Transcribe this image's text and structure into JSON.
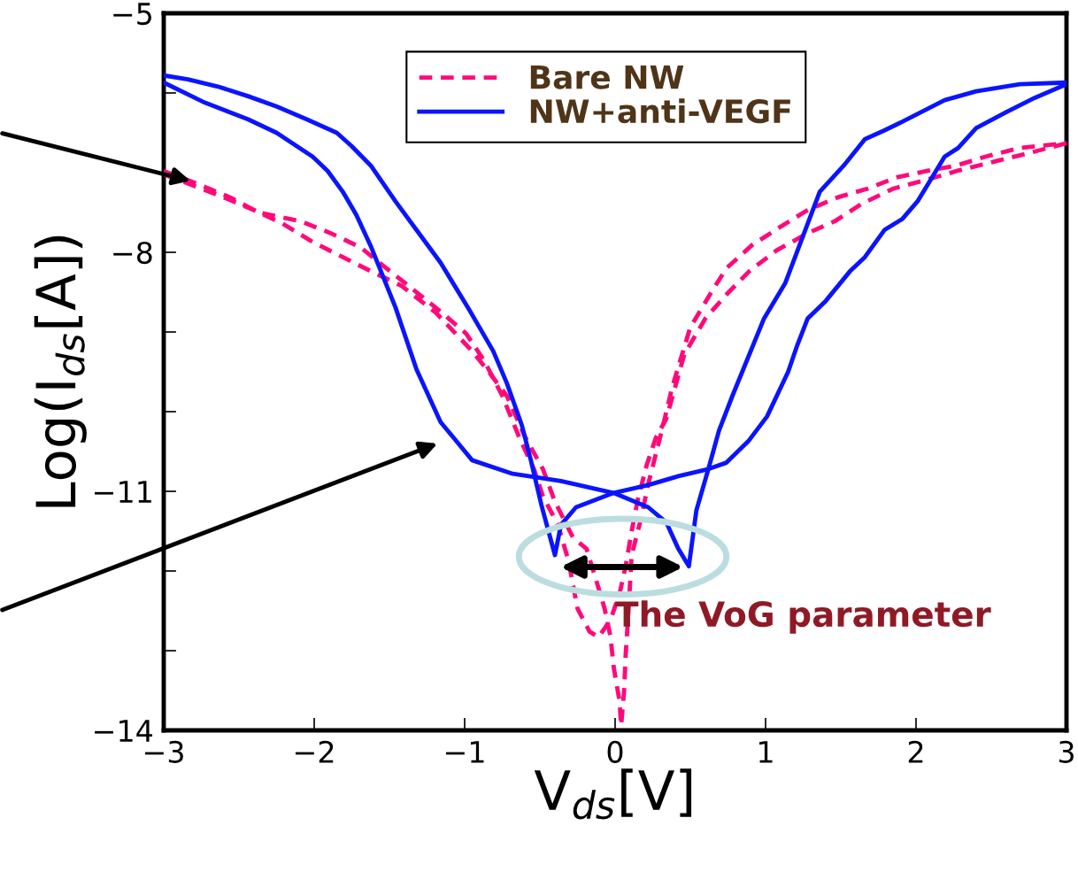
{
  "chart_data": {
    "type": "line",
    "xlabel": "V$_{ds}$[V]",
    "ylabel": "Log(I$_{ds}$[A])",
    "xlim": [
      -3,
      3
    ],
    "ylim": [
      -14,
      -5
    ],
    "xticks": [
      {
        "value": -3,
        "label": "−3"
      },
      {
        "value": -2,
        "label": "−2"
      },
      {
        "value": -1,
        "label": "−1"
      },
      0,
      1,
      2,
      3
    ],
    "yticks": [
      {
        "value": -14,
        "label": "−14"
      },
      {
        "value": -13,
        "label": null
      },
      {
        "value": -12,
        "label": null
      },
      {
        "value": -11,
        "label": "−11"
      },
      {
        "value": -10,
        "label": null
      },
      {
        "value": -9,
        "label": null
      },
      {
        "value": -8,
        "label": "−8"
      },
      {
        "value": -7,
        "label": null
      },
      {
        "value": -6,
        "label": null
      },
      {
        "value": -5,
        "label": "−5"
      }
    ],
    "grid": false,
    "legend": "top",
    "annotations": [
      "The VoG parameter"
    ],
    "series": [
      {
        "name": "Bare NW",
        "color": "#ff0a7a",
        "line_style": "dashed",
        "x": [
          -3,
          -2.79,
          -2.56,
          -2.37,
          -2.09,
          -1.89,
          -1.69,
          -1.54,
          -1.34,
          -1.15,
          -0.99,
          -0.87,
          -0.75,
          -0.64,
          -0.54,
          -0.48,
          -0.38,
          -0.31,
          -0.25,
          -0.17,
          -0.11,
          -0.03,
          0.03,
          0.07,
          0.11,
          0.15,
          0.21,
          0.27,
          0.34,
          0.46,
          0.6,
          0.74,
          0.89,
          1.07,
          1.28,
          1.46,
          1.64,
          1.85,
          2.07,
          2.27,
          2.5,
          2.74,
          3.0
        ],
        "values": [
          -6.98,
          -7.13,
          -7.31,
          -7.5,
          -7.61,
          -7.76,
          -7.94,
          -8.17,
          -8.47,
          -8.76,
          -9.02,
          -9.36,
          -9.8,
          -10.31,
          -10.72,
          -11.06,
          -11.42,
          -11.87,
          -12.47,
          -12.76,
          -12.83,
          -12.61,
          -12.28,
          -11.94,
          -11.5,
          -11.11,
          -10.67,
          -10.33,
          -10.09,
          -9.28,
          -8.83,
          -8.53,
          -8.24,
          -7.98,
          -7.76,
          -7.61,
          -7.39,
          -7.2,
          -7.09,
          -6.98,
          -6.87,
          -6.76,
          -6.63
        ]
      },
      {
        "color": "#ff0a7a",
        "line_style": "dashed",
        "x": [
          -3,
          -2.64,
          -2.4,
          -2.21,
          -2.01,
          -1.81,
          -1.62,
          -1.42,
          -1.19,
          -0.95,
          -0.84,
          -0.72,
          -0.6,
          -0.48,
          -0.4,
          -0.28,
          -0.19,
          -0.13,
          -0.07,
          -0.03,
          -0.01,
          0.03,
          0.04,
          0.06,
          0.07,
          0.09,
          0.11,
          0.17,
          0.22,
          0.31,
          0.38,
          0.5,
          0.64,
          0.74,
          0.91,
          1.09,
          1.28,
          1.48,
          1.68,
          1.87,
          2.07,
          2.27,
          2.46,
          2.69,
          3.0
        ],
        "values": [
          -7.02,
          -7.28,
          -7.47,
          -7.64,
          -7.87,
          -8.06,
          -8.24,
          -8.42,
          -8.76,
          -9.24,
          -9.5,
          -9.8,
          -10.31,
          -10.72,
          -11.13,
          -11.58,
          -11.72,
          -12.09,
          -12.47,
          -12.83,
          -13.2,
          -13.64,
          -13.94,
          -13.5,
          -13.06,
          -12.47,
          -11.8,
          -11.36,
          -10.91,
          -10.24,
          -9.69,
          -8.94,
          -8.5,
          -8.2,
          -7.91,
          -7.69,
          -7.47,
          -7.31,
          -7.2,
          -7.06,
          -6.98,
          -6.91,
          -6.8,
          -6.69,
          -6.63
        ]
      },
      {
        "name": "NW+anti-VEGF",
        "color": "#0a14ff",
        "line_style": "solid",
        "x": [
          -3,
          -2.84,
          -2.64,
          -2.44,
          -2.25,
          -2.05,
          -1.85,
          -1.75,
          -1.62,
          -1.46,
          -1.32,
          -1.16,
          -0.97,
          -0.81,
          -0.72,
          -0.62,
          -0.56,
          -0.49,
          -0.4,
          -0.36,
          -0.26,
          -0.01,
          0.22,
          0.42,
          0.62,
          0.74,
          0.89,
          1.01,
          1.15,
          1.21,
          1.28,
          1.4,
          1.56,
          1.66,
          1.79,
          1.91,
          2.01,
          2.19,
          2.28,
          2.4,
          2.6,
          2.79,
          3.0
        ],
        "values": [
          -5.78,
          -5.83,
          -5.92,
          -6.04,
          -6.17,
          -6.33,
          -6.5,
          -6.67,
          -6.92,
          -7.36,
          -7.72,
          -8.13,
          -8.72,
          -9.24,
          -9.64,
          -10.17,
          -10.61,
          -11.17,
          -11.8,
          -11.42,
          -11.2,
          -11.02,
          -10.92,
          -10.81,
          -10.72,
          -10.64,
          -10.36,
          -10.06,
          -9.5,
          -9.17,
          -8.83,
          -8.61,
          -8.24,
          -8.06,
          -7.72,
          -7.58,
          -7.36,
          -6.8,
          -6.69,
          -6.44,
          -6.24,
          -6.06,
          -5.89
        ]
      },
      {
        "color": "#0a14ff",
        "line_style": "solid",
        "x": [
          -3,
          -2.74,
          -2.44,
          -2.25,
          -2.01,
          -1.91,
          -1.81,
          -1.72,
          -1.62,
          -1.46,
          -1.32,
          -1.16,
          -0.95,
          -0.68,
          -0.36,
          -0.01,
          0.22,
          0.34,
          0.42,
          0.49,
          0.54,
          0.62,
          0.69,
          0.78,
          0.99,
          1.13,
          1.36,
          1.52,
          1.66,
          1.79,
          1.91,
          2.19,
          2.4,
          2.69,
          3.0
        ],
        "values": [
          -5.87,
          -6.11,
          -6.33,
          -6.5,
          -6.8,
          -6.98,
          -7.24,
          -7.53,
          -7.94,
          -8.69,
          -9.47,
          -10.13,
          -10.61,
          -10.78,
          -10.87,
          -11.02,
          -11.2,
          -11.39,
          -11.72,
          -11.94,
          -11.24,
          -10.72,
          -10.24,
          -9.8,
          -8.83,
          -8.39,
          -7.24,
          -6.91,
          -6.58,
          -6.47,
          -6.36,
          -6.09,
          -5.98,
          -5.89,
          -5.87
        ]
      }
    ]
  }
}
